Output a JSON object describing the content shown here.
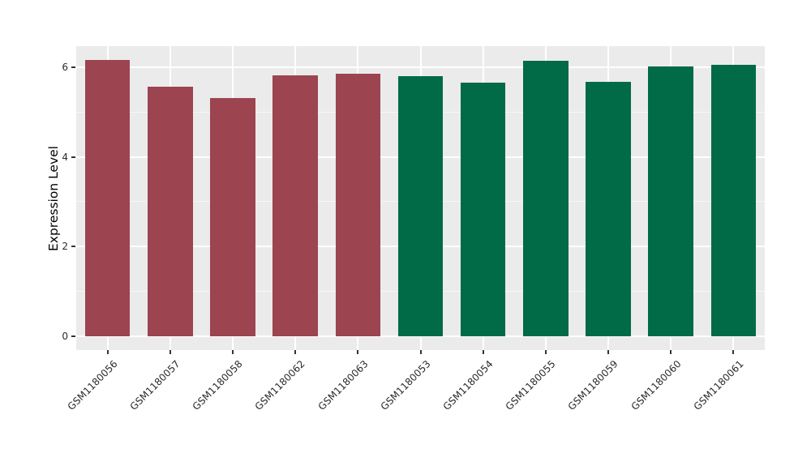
{
  "chart_data": {
    "type": "bar",
    "title": "",
    "xlabel": "",
    "ylabel": "Expression Level",
    "categories": [
      "GSM1180056",
      "GSM1180057",
      "GSM1180058",
      "GSM1180062",
      "GSM1180063",
      "GSM1180053",
      "GSM1180054",
      "GSM1180055",
      "GSM1180059",
      "GSM1180060",
      "GSM1180061"
    ],
    "values": [
      6.16,
      5.57,
      5.31,
      5.82,
      5.85,
      5.8,
      5.66,
      6.14,
      5.68,
      6.02,
      6.06
    ],
    "bar_colors": [
      "#9C4450",
      "#9C4450",
      "#9C4450",
      "#9C4450",
      "#9C4450",
      "#016A47",
      "#016A47",
      "#016A47",
      "#016A47",
      "#016A47",
      "#016A47"
    ],
    "group_colors": {
      "red": "#9C4450",
      "green": "#016A47"
    },
    "yticks": [
      0,
      2,
      4,
      6
    ],
    "yticks_minor": [
      1,
      3,
      5
    ],
    "ylim": [
      -0.31,
      6.47
    ],
    "bar_width_fraction": 0.72,
    "grid": true,
    "legend_position": "none",
    "panel_background": "#EBEBEB",
    "figure_background": "#FFFFFF",
    "grid_major_color": "#FFFFFF",
    "grid_minor_color": "#F7F7F7",
    "tick_mark_color": "#333333",
    "tick_label_color": "#2B2B2B",
    "axis_title_color": "#000000"
  }
}
